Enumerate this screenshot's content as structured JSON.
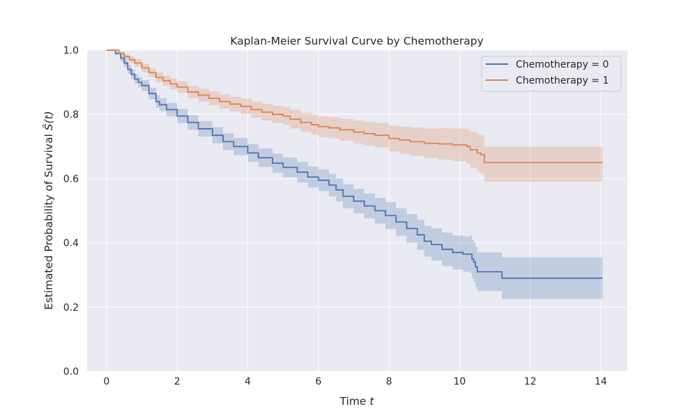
{
  "chart_data": {
    "type": "line",
    "title": "Kaplan-Meier Survival Curve by Chemotherapy",
    "xlabel": "Time",
    "xlabel_var": "t",
    "ylabel": "Estimated Probability of Survival",
    "ylabel_var": "Ŝ(t)",
    "xlim": [
      -0.55,
      14.75
    ],
    "ylim": [
      0.0,
      1.0
    ],
    "x_ticks": [
      "0",
      "2",
      "4",
      "6",
      "8",
      "10",
      "12",
      "14"
    ],
    "y_ticks": [
      "0.0",
      "0.2",
      "0.4",
      "0.6",
      "0.8",
      "1.0"
    ],
    "grid": true,
    "legend_position": "top-right",
    "series": [
      {
        "name": "Chemotherapy = 0",
        "color": "#4c72b0",
        "x": [
          0.0,
          0.15,
          0.25,
          0.4,
          0.5,
          0.6,
          0.7,
          0.8,
          0.9,
          1.0,
          1.2,
          1.4,
          1.5,
          1.7,
          2.0,
          2.3,
          2.6,
          3.0,
          3.3,
          3.6,
          4.0,
          4.3,
          4.7,
          5.0,
          5.4,
          5.7,
          6.0,
          6.3,
          6.5,
          6.7,
          7.0,
          7.3,
          7.6,
          7.9,
          8.2,
          8.5,
          8.8,
          9.0,
          9.2,
          9.5,
          9.8,
          10.1,
          10.3,
          10.35,
          10.4,
          10.45,
          10.5,
          11.0,
          11.2,
          14.05
        ],
        "y": [
          1.0,
          1.0,
          0.99,
          0.975,
          0.96,
          0.94,
          0.925,
          0.91,
          0.9,
          0.89,
          0.865,
          0.84,
          0.83,
          0.815,
          0.795,
          0.775,
          0.755,
          0.735,
          0.715,
          0.7,
          0.68,
          0.665,
          0.648,
          0.635,
          0.62,
          0.605,
          0.595,
          0.58,
          0.565,
          0.545,
          0.53,
          0.515,
          0.5,
          0.485,
          0.465,
          0.445,
          0.425,
          0.405,
          0.395,
          0.38,
          0.37,
          0.365,
          0.365,
          0.35,
          0.34,
          0.325,
          0.31,
          0.31,
          0.29,
          0.29
        ],
        "ci_lower": [
          1.0,
          1.0,
          0.985,
          0.965,
          0.948,
          0.926,
          0.91,
          0.895,
          0.884,
          0.873,
          0.847,
          0.82,
          0.81,
          0.794,
          0.773,
          0.752,
          0.731,
          0.71,
          0.689,
          0.673,
          0.652,
          0.636,
          0.618,
          0.604,
          0.588,
          0.572,
          0.561,
          0.545,
          0.529,
          0.508,
          0.492,
          0.476,
          0.46,
          0.443,
          0.422,
          0.4,
          0.378,
          0.357,
          0.345,
          0.328,
          0.317,
          0.31,
          0.306,
          0.29,
          0.278,
          0.262,
          0.25,
          0.25,
          0.225,
          0.225
        ],
        "ci_upper": [
          1.0,
          1.0,
          0.995,
          0.985,
          0.972,
          0.954,
          0.94,
          0.925,
          0.916,
          0.907,
          0.883,
          0.86,
          0.85,
          0.836,
          0.817,
          0.798,
          0.779,
          0.76,
          0.741,
          0.727,
          0.708,
          0.694,
          0.678,
          0.666,
          0.652,
          0.638,
          0.629,
          0.615,
          0.601,
          0.582,
          0.568,
          0.554,
          0.54,
          0.527,
          0.508,
          0.49,
          0.472,
          0.453,
          0.445,
          0.432,
          0.423,
          0.42,
          0.424,
          0.41,
          0.402,
          0.388,
          0.37,
          0.37,
          0.355,
          0.355
        ]
      },
      {
        "name": "Chemotherapy = 1",
        "color": "#dd8452",
        "x": [
          0.0,
          0.2,
          0.35,
          0.5,
          0.65,
          0.8,
          1.0,
          1.2,
          1.4,
          1.6,
          1.8,
          2.0,
          2.3,
          2.6,
          2.9,
          3.2,
          3.5,
          3.8,
          4.1,
          4.4,
          4.7,
          5.0,
          5.2,
          5.5,
          5.8,
          6.0,
          6.3,
          6.6,
          7.0,
          7.3,
          7.6,
          8.0,
          8.3,
          8.6,
          9.0,
          9.4,
          9.8,
          10.2,
          10.3,
          10.5,
          10.6,
          10.7,
          14.05
        ],
        "y": [
          1.0,
          1.0,
          0.99,
          0.98,
          0.97,
          0.96,
          0.945,
          0.93,
          0.915,
          0.905,
          0.895,
          0.885,
          0.87,
          0.86,
          0.85,
          0.84,
          0.832,
          0.825,
          0.815,
          0.807,
          0.8,
          0.795,
          0.785,
          0.775,
          0.768,
          0.762,
          0.758,
          0.752,
          0.745,
          0.74,
          0.735,
          0.725,
          0.72,
          0.715,
          0.71,
          0.708,
          0.705,
          0.7,
          0.69,
          0.68,
          0.675,
          0.65,
          0.65
        ],
        "ci_lower": [
          1.0,
          1.0,
          0.985,
          0.972,
          0.96,
          0.948,
          0.932,
          0.916,
          0.9,
          0.889,
          0.878,
          0.867,
          0.851,
          0.84,
          0.829,
          0.818,
          0.809,
          0.801,
          0.79,
          0.781,
          0.773,
          0.767,
          0.756,
          0.745,
          0.737,
          0.73,
          0.725,
          0.718,
          0.709,
          0.703,
          0.697,
          0.685,
          0.678,
          0.671,
          0.664,
          0.659,
          0.654,
          0.646,
          0.634,
          0.622,
          0.615,
          0.59,
          0.59
        ],
        "ci_upper": [
          1.0,
          1.0,
          0.995,
          0.988,
          0.98,
          0.972,
          0.958,
          0.944,
          0.93,
          0.921,
          0.912,
          0.903,
          0.889,
          0.88,
          0.871,
          0.862,
          0.855,
          0.849,
          0.84,
          0.833,
          0.827,
          0.823,
          0.814,
          0.805,
          0.799,
          0.794,
          0.791,
          0.786,
          0.781,
          0.777,
          0.773,
          0.765,
          0.762,
          0.759,
          0.756,
          0.757,
          0.756,
          0.754,
          0.746,
          0.738,
          0.735,
          0.7,
          0.7
        ]
      }
    ]
  }
}
